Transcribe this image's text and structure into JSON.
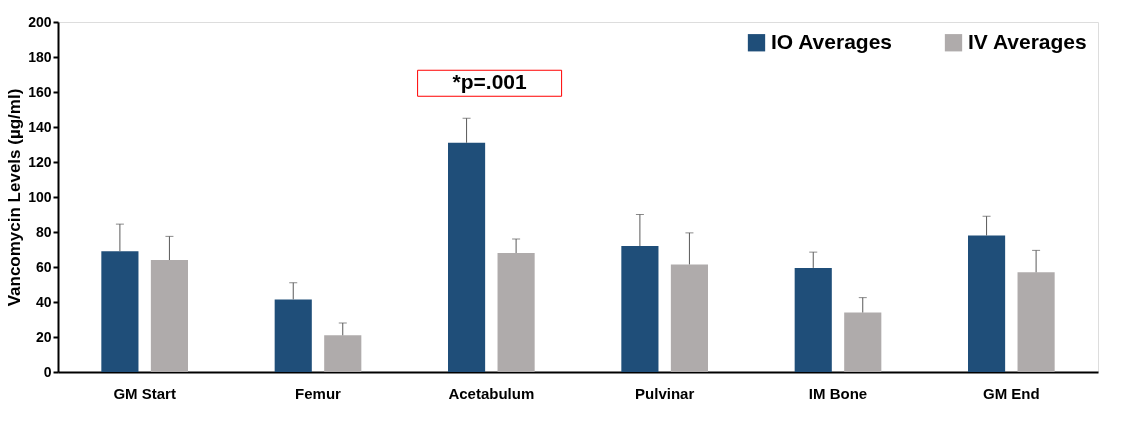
{
  "chart_data": {
    "type": "bar",
    "ylabel": "Vancomycin Levels (µg/ml)",
    "categories": [
      "GM Start",
      "Femur",
      "Acetabulum",
      "Pulvinar",
      "IM Bone",
      "GM End"
    ],
    "series": [
      {
        "name": "IO Averages",
        "color": "#1f4e79",
        "values": [
          69,
          41.5,
          131,
          72,
          59.5,
          78
        ],
        "errors": [
          [
            69,
            84.5
          ],
          [
            41.5,
            51
          ],
          [
            131,
            145
          ],
          [
            72,
            90
          ],
          [
            59.5,
            68.5
          ],
          [
            78,
            89
          ]
        ]
      },
      {
        "name": "IV Averages",
        "color": "#afabab",
        "values": [
          64,
          21,
          68,
          61.5,
          34,
          57
        ],
        "errors": [
          [
            64,
            77.5
          ],
          [
            21,
            28
          ],
          [
            68,
            76
          ],
          [
            61.5,
            79.5
          ],
          [
            34,
            42.5
          ],
          [
            57,
            69.5
          ]
        ]
      }
    ],
    "ylim": [
      0,
      200
    ],
    "yticks": [
      0,
      20,
      40,
      60,
      80,
      100,
      120,
      140,
      160,
      180,
      200
    ],
    "annotations": [
      "*p=.001"
    ],
    "grid": false,
    "legend": "top right"
  }
}
